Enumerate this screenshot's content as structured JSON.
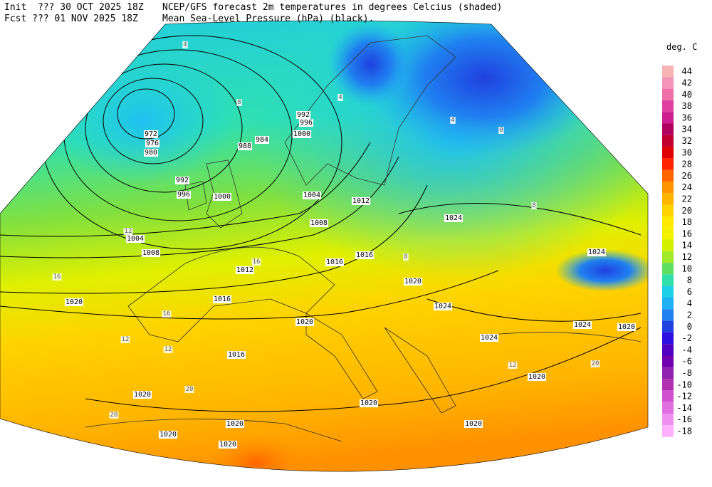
{
  "header": {
    "init": "Init  ??? 30 OCT 2025 18Z",
    "fcst": "Fcst ??? 01 NOV 2025 18Z",
    "title_line1": "NCEP/GFS forecast 2m temperatures in degrees Celcius (shaded)",
    "title_line2": "Mean Sea-Level Pressure (hPa) (black)."
  },
  "legend": {
    "title": "deg. C",
    "levels": [
      44,
      42,
      40,
      38,
      36,
      34,
      32,
      30,
      28,
      26,
      24,
      22,
      20,
      18,
      16,
      14,
      12,
      10,
      8,
      6,
      4,
      2,
      0,
      -2,
      -4,
      -6,
      -8,
      -10,
      -12,
      -14,
      -16,
      -18
    ],
    "colors": [
      "#f7b4b4",
      "#f494b8",
      "#ee70a8",
      "#e040a0",
      "#cc2090",
      "#b00060",
      "#c00030",
      "#e00000",
      "#ff2400",
      "#ff6400",
      "#ff9400",
      "#ffb400",
      "#ffd200",
      "#ffea00",
      "#f2f200",
      "#d2f000",
      "#a0e828",
      "#60e060",
      "#30e0a8",
      "#20d0e8",
      "#20b0f4",
      "#2080f0",
      "#2040e0",
      "#3010e0",
      "#5000c0",
      "#7000b0",
      "#9020b0",
      "#b030b0",
      "#d050d0",
      "#e070e0",
      "#f090f0",
      "#ffb0ff"
    ]
  },
  "isobar_labels": [
    972,
    976,
    980,
    984,
    988,
    992,
    996,
    1000,
    1004,
    1008,
    1012,
    1016,
    1020,
    1020,
    1016,
    1020,
    1020,
    1020,
    1020,
    1020,
    1020,
    1020,
    1020,
    1024,
    1024,
    1024,
    1024,
    1024,
    1012,
    1008,
    1004,
    1016,
    1016,
    1020,
    1000,
    996,
    992
  ],
  "temperature_labels": [
    4,
    8,
    12,
    16,
    20,
    12,
    12,
    16,
    20,
    8,
    4,
    4,
    0,
    8,
    12,
    20,
    16
  ]
}
